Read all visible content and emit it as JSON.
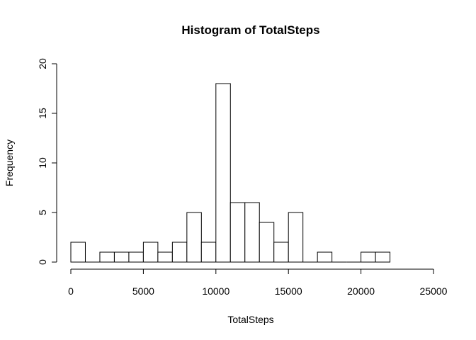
{
  "chart_data": {
    "type": "bar",
    "title": "Histogram of TotalSteps",
    "xlabel": "TotalSteps",
    "ylabel": "Frequency",
    "xlim": [
      0,
      25000
    ],
    "ylim": [
      0,
      20
    ],
    "xticks": [
      0,
      5000,
      10000,
      15000,
      20000,
      25000
    ],
    "yticks": [
      0,
      5,
      10,
      15,
      20
    ],
    "bin_width": 1000,
    "bins": [
      {
        "start": 0,
        "end": 1000,
        "count": 2
      },
      {
        "start": 1000,
        "end": 2000,
        "count": 0
      },
      {
        "start": 2000,
        "end": 3000,
        "count": 1
      },
      {
        "start": 3000,
        "end": 4000,
        "count": 1
      },
      {
        "start": 4000,
        "end": 5000,
        "count": 1
      },
      {
        "start": 5000,
        "end": 6000,
        "count": 2
      },
      {
        "start": 6000,
        "end": 7000,
        "count": 1
      },
      {
        "start": 7000,
        "end": 8000,
        "count": 2
      },
      {
        "start": 8000,
        "end": 9000,
        "count": 5
      },
      {
        "start": 9000,
        "end": 10000,
        "count": 2
      },
      {
        "start": 10000,
        "end": 11000,
        "count": 18
      },
      {
        "start": 11000,
        "end": 12000,
        "count": 6
      },
      {
        "start": 12000,
        "end": 13000,
        "count": 6
      },
      {
        "start": 13000,
        "end": 14000,
        "count": 4
      },
      {
        "start": 14000,
        "end": 15000,
        "count": 2
      },
      {
        "start": 15000,
        "end": 16000,
        "count": 5
      },
      {
        "start": 16000,
        "end": 17000,
        "count": 0
      },
      {
        "start": 17000,
        "end": 18000,
        "count": 1
      },
      {
        "start": 18000,
        "end": 19000,
        "count": 0
      },
      {
        "start": 19000,
        "end": 20000,
        "count": 0
      },
      {
        "start": 20000,
        "end": 21000,
        "count": 1
      },
      {
        "start": 21000,
        "end": 22000,
        "count": 1
      }
    ],
    "grid": false,
    "legend": "none"
  }
}
